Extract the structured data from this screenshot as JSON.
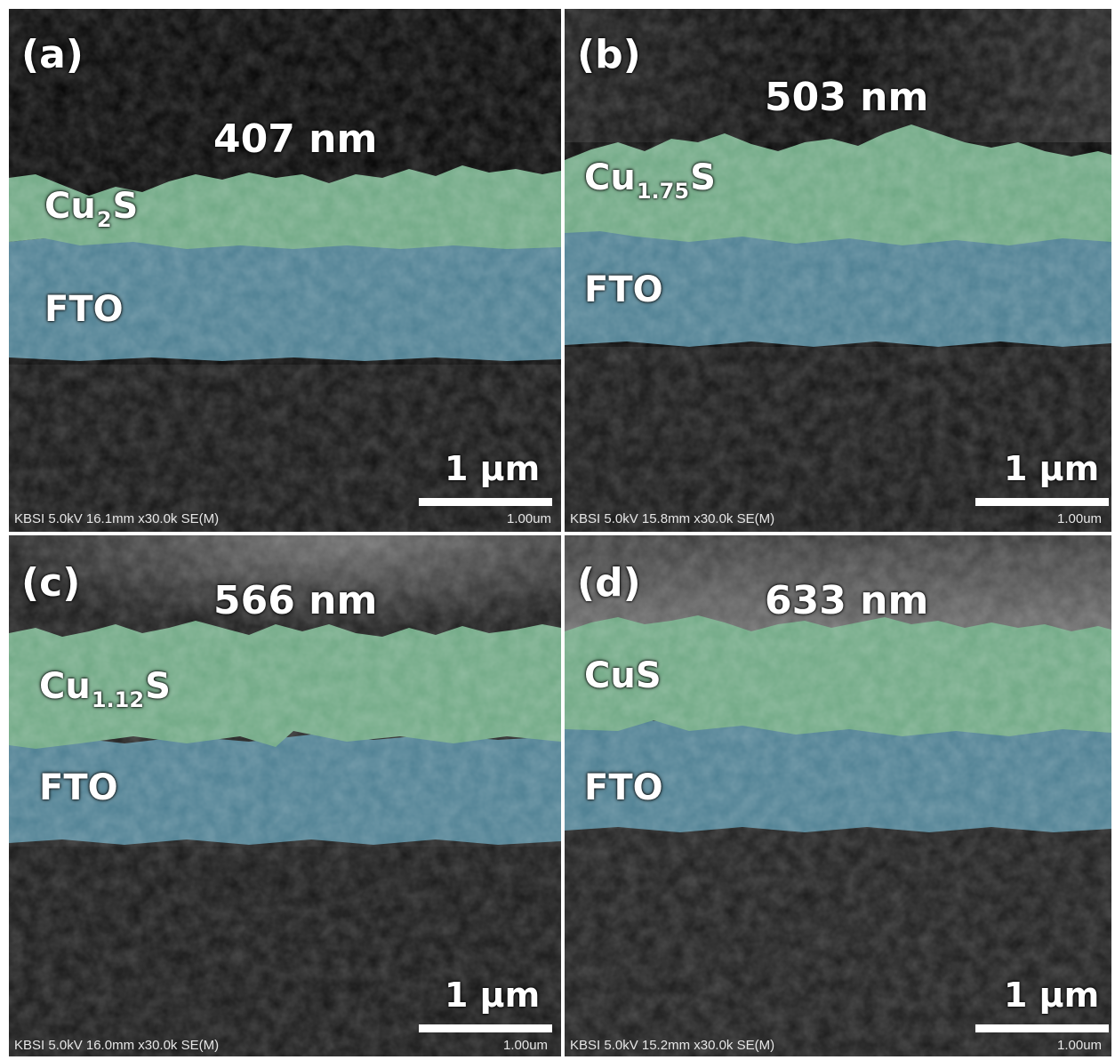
{
  "panels": [
    {
      "letter": "(a)",
      "thickness": "407 nm",
      "material_base": "Cu",
      "material_sub": "2",
      "material_tail": "S",
      "substrate": "FTO",
      "scale_label": "1 µm",
      "meta_left": "KBSI 5.0kV 16.1mm x30.0k SE(M)",
      "meta_right": "1.00um"
    },
    {
      "letter": "(b)",
      "thickness": "503 nm",
      "material_base": "Cu",
      "material_sub": "1.75",
      "material_tail": "S",
      "substrate": "FTO",
      "scale_label": "1 µm",
      "meta_left": "KBSI 5.0kV 15.8mm x30.0k SE(M)",
      "meta_right": "1.00um"
    },
    {
      "letter": "(c)",
      "thickness": "566 nm",
      "material_base": "Cu",
      "material_sub": "1.12",
      "material_tail": "S",
      "substrate": "FTO",
      "scale_label": "1 µm",
      "meta_left": "KBSI 5.0kV 16.0mm x30.0k SE(M)",
      "meta_right": "1.00um"
    },
    {
      "letter": "(d)",
      "thickness": "633 nm",
      "material_base": "CuS",
      "material_sub": "",
      "material_tail": "",
      "substrate": "FTO",
      "scale_label": "1 µm",
      "meta_left": "KBSI 5.0kV 15.2mm x30.0k SE(M)",
      "meta_right": "1.00um"
    }
  ],
  "colors": {
    "film_layer": "#6fa884",
    "fto_layer": "#4d7f92",
    "background": "#0b0b0b",
    "divider": "#ffffff"
  }
}
